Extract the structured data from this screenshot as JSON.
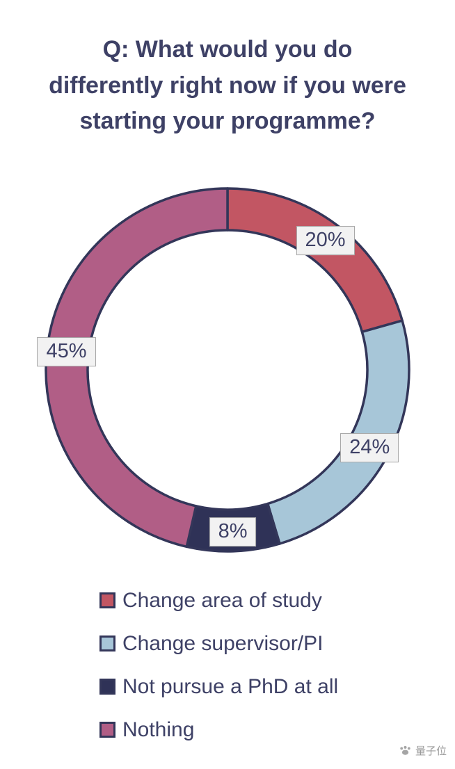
{
  "page": {
    "background": "#ffffff",
    "text_color": "#3e4166",
    "outline_color": "#333659"
  },
  "title": {
    "text": "Q: What would you do\ndifferently right now if you were\nstarting your programme?",
    "color": "#3e4166"
  },
  "chart_data": {
    "type": "pie",
    "donut": true,
    "title": "Q: What would you do differently right now if you were starting your programme?",
    "categories": [
      "Change area of study",
      "Change supervisor/PI",
      "Not pursue a PhD at all",
      "Nothing"
    ],
    "values": [
      20,
      24,
      8,
      45
    ],
    "labels": [
      "20%",
      "24%",
      "8%",
      "45%"
    ],
    "colors": [
      "#c25663",
      "#a7c6d8",
      "#2f3257",
      "#b15e86"
    ],
    "outline": "#333659",
    "start_angle_deg": 0,
    "direction": "clockwise",
    "inner_radius_ratio": 0.77,
    "legend_position": "bottom",
    "label_box_background": "#f2f2f2",
    "label_box_border": "#a6a6a6"
  },
  "legend": {
    "items": [
      {
        "label": "Change area of study",
        "color": "#c25663"
      },
      {
        "label": "Change supervisor/PI",
        "color": "#a7c6d8"
      },
      {
        "label": "Not pursue a PhD at all",
        "color": "#2f3257"
      },
      {
        "label": "Nothing",
        "color": "#b15e86"
      }
    ]
  },
  "watermark": {
    "text": "量子位",
    "color": "#9b9b9b"
  }
}
